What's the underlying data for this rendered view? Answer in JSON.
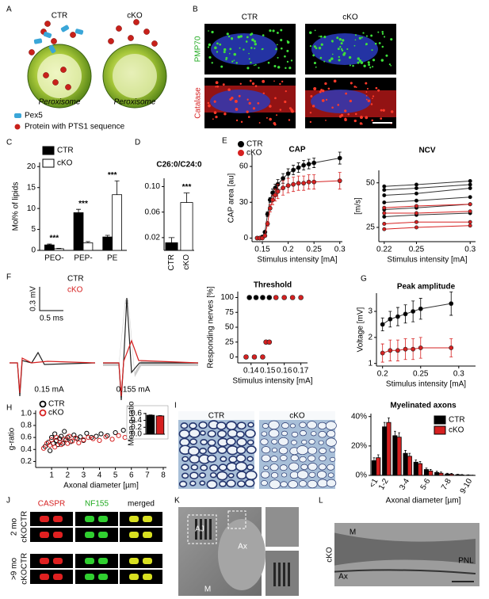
{
  "chart_data": [
    {
      "type": "bar",
      "ylabel": "Mol% of lipids",
      "categories": [
        "PEO-",
        "PEP-",
        "PE"
      ],
      "series": [
        {
          "name": "CTR",
          "color": "#000000",
          "values": [
            1.3,
            9,
            3.2
          ],
          "errors": [
            0.2,
            0.8,
            0.4
          ]
        },
        {
          "name": "cKO",
          "color": "#ffffff",
          "values": [
            0.4,
            1.8,
            13.3
          ],
          "errors": [
            0.1,
            0.3,
            3.3
          ]
        }
      ],
      "annotations": [
        "***",
        "***",
        "***"
      ],
      "ylim": [
        0,
        21
      ],
      "yticks": [
        0,
        5,
        10,
        15,
        20
      ],
      "legend": "upper left"
    },
    {
      "type": "bar",
      "title": "C26:0/C24:0",
      "categories": [
        "CTR",
        "cKO"
      ],
      "values": [
        0.012,
        0.075
      ],
      "errors": [
        0.008,
        0.015
      ],
      "colors": [
        "#000000",
        "#ffffff"
      ],
      "annotations": [
        "***"
      ],
      "ylim": [
        0,
        0.113
      ],
      "yticks": [
        0.02,
        0.06,
        {
          "value": 0.1,
          "label": "0.10"
        }
      ]
    },
    {
      "type": "line",
      "title": "CAP",
      "xlabel": "Stimulus intensity [mA]",
      "ylabel": "CAP area [au]",
      "x": [
        0.14,
        0.145,
        0.15,
        0.155,
        0.16,
        0.165,
        0.17,
        0.175,
        0.18,
        0.19,
        0.2,
        0.21,
        0.22,
        0.23,
        0.24,
        0.25,
        0.3
      ],
      "series": [
        {
          "name": "CTR",
          "color": "#000000",
          "values": [
            0,
            0,
            1,
            5,
            20,
            32,
            38,
            42,
            45,
            50,
            54,
            57,
            59,
            61,
            62,
            63,
            67
          ],
          "errors": [
            0,
            0,
            0,
            1,
            2,
            2,
            3,
            3,
            4,
            4,
            4,
            4,
            4,
            4,
            4,
            4,
            5
          ]
        },
        {
          "name": "cKO",
          "color": "#d62020",
          "values": [
            0,
            0,
            0,
            2,
            12,
            25,
            32,
            36,
            39,
            42,
            44,
            45,
            46,
            46,
            47,
            47,
            48
          ],
          "errors": [
            0,
            0,
            0,
            1,
            2,
            3,
            4,
            5,
            6,
            6,
            6,
            6,
            6,
            6,
            6,
            6,
            7
          ]
        }
      ],
      "xlim": [
        0.13,
        0.305
      ],
      "xticks": [
        0.15,
        0.2,
        0.25,
        0.3
      ],
      "ylim": [
        -3,
        70
      ],
      "yticks": [
        0,
        30,
        60
      ],
      "legend": "upper left"
    },
    {
      "type": "line",
      "title": "NCV",
      "xlabel": "Stimulus intensity [mA]",
      "ylabel": "[m/s]",
      "x": [
        0.22,
        0.25,
        0.3
      ],
      "series": [
        {
          "color": "#000000",
          "values": [
            48,
            49,
            51
          ]
        },
        {
          "color": "#000000",
          "values": [
            46,
            47,
            49
          ]
        },
        {
          "color": "#000000",
          "values": [
            43,
            44,
            47
          ]
        },
        {
          "color": "#000000",
          "values": [
            39,
            40,
            42
          ]
        },
        {
          "color": "#000000",
          "values": [
            35,
            36,
            38
          ]
        },
        {
          "color": "#000000",
          "values": [
            31,
            32,
            33
          ]
        },
        {
          "color": "#d62020",
          "values": [
            36,
            37,
            38
          ]
        },
        {
          "color": "#d62020",
          "values": [
            33,
            33,
            34
          ]
        },
        {
          "color": "#d62020",
          "values": [
            27,
            28,
            28
          ]
        },
        {
          "color": "#d62020",
          "values": [
            24,
            25,
            26
          ]
        }
      ],
      "xlim": [
        0.215,
        0.305
      ],
      "xticks": [
        0.22,
        0.25,
        0.3
      ],
      "ylim": [
        17,
        57
      ],
      "yticks": [
        25,
        50
      ]
    },
    {
      "type": "scatter",
      "title": "Threshold",
      "xlabel": "Stimulus intensity [mA]",
      "ylabel": "Responding nerves [%]",
      "series": [
        {
          "color": "#000000",
          "x": [
            0.139,
            0.143,
            0.147,
            0.151
          ],
          "values": [
            100,
            100,
            100,
            100
          ]
        },
        {
          "color": "#d62020",
          "x": [
            0.137,
            0.142,
            0.147,
            0.149,
            0.151,
            0.155,
            0.16,
            0.165,
            0.17
          ],
          "values": [
            0,
            0,
            0,
            25,
            25,
            100,
            100,
            100,
            100
          ]
        }
      ],
      "xlim": [
        0.132,
        0.174
      ],
      "xticks": [
        0.14,
        0.15,
        0.16,
        0.17
      ],
      "ylim": [
        -10,
        110
      ],
      "yticks": [
        0,
        25,
        50,
        75,
        100
      ]
    },
    {
      "type": "line",
      "title": "Peak amplitude",
      "xlabel": "Stimulus intensity [mA]",
      "ylabel": "Voltage [mV]",
      "x": [
        0.2,
        0.21,
        0.22,
        0.23,
        0.24,
        0.25,
        0.29
      ],
      "series": [
        {
          "color": "#000000",
          "values": [
            2.5,
            2.7,
            2.8,
            2.9,
            3.0,
            3.1,
            3.3
          ],
          "errors": [
            0.25,
            0.3,
            0.35,
            0.35,
            0.4,
            0.4,
            0.45
          ]
        },
        {
          "color": "#d62020",
          "values": [
            1.4,
            1.5,
            1.5,
            1.55,
            1.55,
            1.6,
            1.6
          ],
          "errors": [
            0.35,
            0.4,
            0.4,
            0.4,
            0.4,
            0.4,
            0.35
          ]
        }
      ],
      "xlim": [
        0.192,
        0.322
      ],
      "xticks": [
        0.2,
        0.25,
        0.3
      ],
      "ylim": [
        0.9,
        3.7
      ],
      "yticks": [
        1,
        2,
        3
      ]
    },
    {
      "type": "scatter",
      "xlabel": "Axonal diameter [µm]",
      "ylabel": "g-ratio",
      "marker": "open",
      "series": [
        {
          "name": "CTR",
          "color": "#000000",
          "x": [
            0.6,
            0.8,
            0.9,
            1.0,
            1.1,
            1.2,
            1.3,
            1.4,
            1.5,
            1.6,
            1.7,
            1.8,
            1.9,
            2.0,
            2.2,
            2.4,
            2.6,
            2.8,
            3.0,
            3.2,
            3.5,
            3.8,
            4.1,
            4.5,
            5.0,
            5.5,
            6.0,
            6.5
          ],
          "values": [
            0.45,
            0.52,
            0.38,
            0.6,
            0.5,
            0.66,
            0.55,
            0.48,
            0.58,
            0.62,
            0.5,
            0.7,
            0.56,
            0.6,
            0.53,
            0.64,
            0.58,
            0.61,
            0.55,
            0.67,
            0.6,
            0.62,
            0.66,
            0.63,
            0.68,
            0.72,
            0.75,
            0.7
          ]
        },
        {
          "name": "cKO",
          "color": "#d62020",
          "x": [
            0.5,
            0.7,
            0.9,
            1.0,
            1.2,
            1.3,
            1.5,
            1.6,
            1.8,
            2.0,
            2.1,
            2.3,
            2.5,
            2.7,
            3.0,
            3.3,
            3.6,
            4.0,
            4.4,
            4.8,
            5.2,
            5.6,
            6.0,
            6.4,
            6.8
          ],
          "values": [
            0.42,
            0.5,
            0.47,
            0.56,
            0.44,
            0.6,
            0.52,
            0.48,
            0.57,
            0.5,
            0.62,
            0.54,
            0.59,
            0.51,
            0.56,
            0.6,
            0.58,
            0.55,
            0.61,
            0.57,
            0.63,
            0.6,
            0.66,
            0.62,
            0.68
          ]
        }
      ],
      "xlim": [
        0,
        8.2
      ],
      "xticks": [
        1,
        2,
        3,
        4,
        5,
        6,
        7,
        8
      ],
      "ylim": [
        0.1,
        1.05
      ],
      "yticks": [
        0.2,
        0.4,
        0.6,
        0.8,
        {
          "value": 1,
          "label": "1.0"
        }
      ],
      "legend": "upper left"
    },
    {
      "type": "bar",
      "ylabel": "Mean g-ratio",
      "categories": [
        null,
        null
      ],
      "values": [
        0.55,
        0.53
      ],
      "errors": [
        0.01,
        0.01
      ],
      "colors": [
        "#000000",
        "#d62020"
      ],
      "ylim": [
        0,
        0.62
      ],
      "yticks": [
        {
          "value": 0,
          "label": "0.0"
        },
        0.2,
        0.4,
        0.6
      ]
    },
    {
      "type": "bar",
      "title": "Myelinated axons",
      "xlabel": "Axonal diameter [µm]",
      "categories": [
        "<1",
        "1-2",
        null,
        "3-4",
        null,
        "5-6",
        null,
        "7-8",
        null,
        "9-10"
      ],
      "series": [
        {
          "name": "CTR",
          "color": "#000000",
          "values": [
            10,
            33,
            27,
            15,
            9,
            4,
            2,
            1,
            0.5,
            0.2
          ],
          "errors": [
            2,
            3,
            3,
            2,
            1.5,
            1,
            0.8,
            0.5,
            0.3,
            0.2
          ]
        },
        {
          "name": "cKO",
          "color": "#d62020",
          "values": [
            12,
            36,
            26,
            13,
            8,
            3,
            1.5,
            0.8,
            0.3,
            0.1
          ],
          "errors": [
            2,
            3,
            3,
            2,
            1.5,
            1,
            0.8,
            0.5,
            0.3,
            0.1
          ]
        }
      ],
      "ylim": [
        0,
        42
      ],
      "yticks": [
        {
          "value": 0,
          "label": "0%"
        },
        {
          "value": 20,
          "label": "20%"
        },
        {
          "value": 40,
          "label": "40%"
        }
      ],
      "legend": "upper right"
    }
  ],
  "figure": {
    "panel_labels": [
      "A",
      "B",
      "C",
      "D",
      "E",
      "F",
      "G",
      "H",
      "I",
      "J",
      "K",
      "L"
    ],
    "A": {
      "groups": [
        "CTR",
        "cKO"
      ],
      "organelle": [
        "Peroxisome",
        "Peroxisome"
      ],
      "key": [
        "Pex5",
        "Protein with PTS1 sequence"
      ]
    },
    "B": {
      "columns": [
        "CTR",
        "cKO"
      ],
      "rows": [
        "PMP70",
        "Catalase"
      ]
    },
    "F": {
      "traces": [
        "CTR",
        "cKO"
      ],
      "scale": [
        "0.3 mV",
        "0.5 ms"
      ],
      "stimuli": [
        "0.15 mA",
        "0.155 mA"
      ]
    },
    "I": {
      "columns": [
        "CTR",
        "cKO"
      ]
    },
    "J": {
      "columns": [
        "CASPR",
        "NF155",
        "merged"
      ],
      "groups": [
        "2 mo",
        ">9 mo"
      ],
      "rows": [
        "CTR",
        "cKO",
        "CTR",
        "cKO"
      ]
    },
    "K": {
      "labels": [
        "AJ",
        "Ax",
        "M"
      ]
    },
    "L": {
      "labels": [
        "cKO",
        "M",
        "Ax",
        "PNL"
      ]
    }
  }
}
